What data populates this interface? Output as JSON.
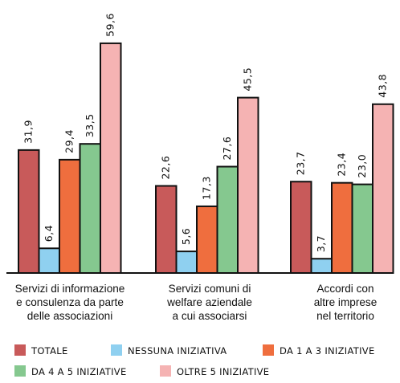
{
  "chart_data": {
    "type": "bar",
    "categories": [
      [
        "Servizi di informazione",
        "e consulenza da parte",
        "delle associazioni"
      ],
      [
        "Servizi comuni di",
        "welfare aziendale",
        "a cui associarsi"
      ],
      [
        "Accordi con",
        "altre imprese",
        "nel territorio"
      ]
    ],
    "series": [
      {
        "name": "TOTALE",
        "color": "#c85a5a",
        "values": [
          31.9,
          22.6,
          23.7
        ],
        "labels": [
          "31,9",
          "22,6",
          "23,7"
        ]
      },
      {
        "name": "NESSUNA INIZIATIVA",
        "color": "#8fd0f0",
        "values": [
          6.4,
          5.6,
          3.7
        ],
        "labels": [
          "6,4",
          "5,6",
          "3,7"
        ]
      },
      {
        "name": "DA 1 A 3 INIZIATIVE",
        "color": "#ef6e3e",
        "values": [
          29.4,
          17.3,
          23.4
        ],
        "labels": [
          "29,4",
          "17,3",
          "23,4"
        ]
      },
      {
        "name": "DA 4 A 5 INIZIATIVE",
        "color": "#85c88f",
        "values": [
          33.5,
          27.6,
          23.0
        ],
        "labels": [
          "33,5",
          "27,6",
          "23,0"
        ]
      },
      {
        "name": "OLTRE 5 INIZIATIVE",
        "color": "#f5b3b3",
        "values": [
          59.6,
          45.5,
          43.8
        ],
        "labels": [
          "59,6",
          "45,5",
          "43,8"
        ]
      }
    ],
    "ylim": [
      0,
      60
    ],
    "legend": "bottom",
    "grid": false
  }
}
